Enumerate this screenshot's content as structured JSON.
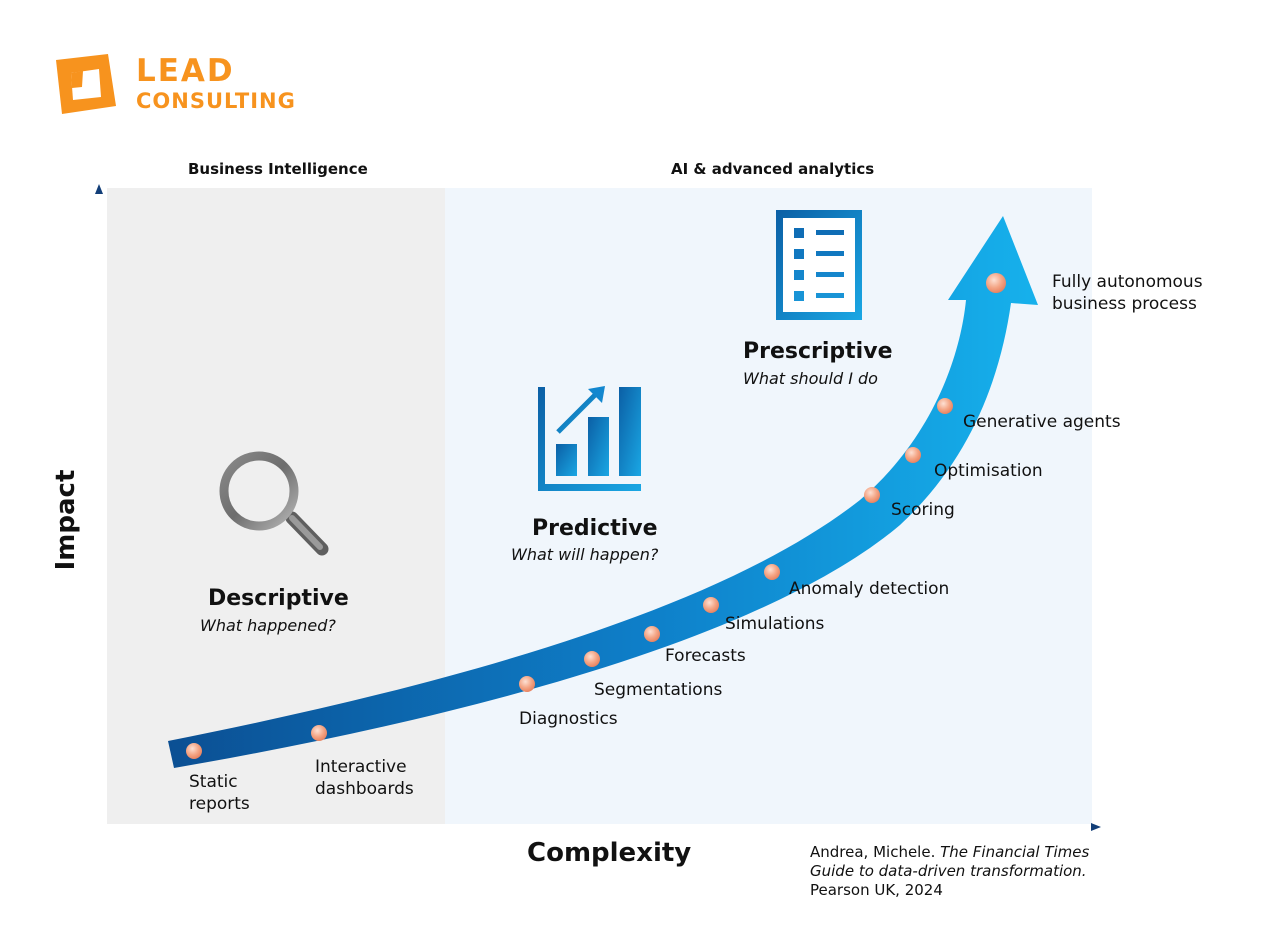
{
  "brand": {
    "line1": "LEAD",
    "line2": "CONSULTING",
    "color": "#f7931e"
  },
  "zones": {
    "left_title": "Business Intelligence",
    "right_title": "AI & advanced analytics"
  },
  "axes": {
    "y": "Impact",
    "x": "Complexity"
  },
  "categories": {
    "descriptive": {
      "title": "Descriptive",
      "subtitle": "What happened?",
      "icon": "magnifier-icon"
    },
    "predictive": {
      "title": "Predictive",
      "subtitle": "What will happen?",
      "icon": "bar-chart-icon"
    },
    "prescriptive": {
      "title": "Prescriptive",
      "subtitle": "What should I do",
      "icon": "checklist-icon"
    }
  },
  "steps": {
    "static_reports": [
      "Static",
      "reports"
    ],
    "interactive_dashboards": [
      "Interactive",
      "dashboards"
    ],
    "diagnostics": "Diagnostics",
    "segmentations": "Segmentations",
    "forecasts": "Forecasts",
    "simulations": "Simulations",
    "anomaly_detection": "Anomaly detection",
    "scoring": "Scoring",
    "optimisation": "Optimisation",
    "generative_agents": "Generative agents",
    "autonomous": [
      "Fully autonomous",
      "business process"
    ]
  },
  "citation": {
    "author": "Andrea, Michele. ",
    "title_line1": "The Financial Times",
    "title_line2": "Guide to data-driven transformation.",
    "publisher": "Pearson UK, 2024"
  },
  "colors": {
    "arrow_dark": "#0b5a9e",
    "arrow_light": "#14aae6",
    "dot": "#f29a75",
    "axis": "#1b5d9a"
  }
}
